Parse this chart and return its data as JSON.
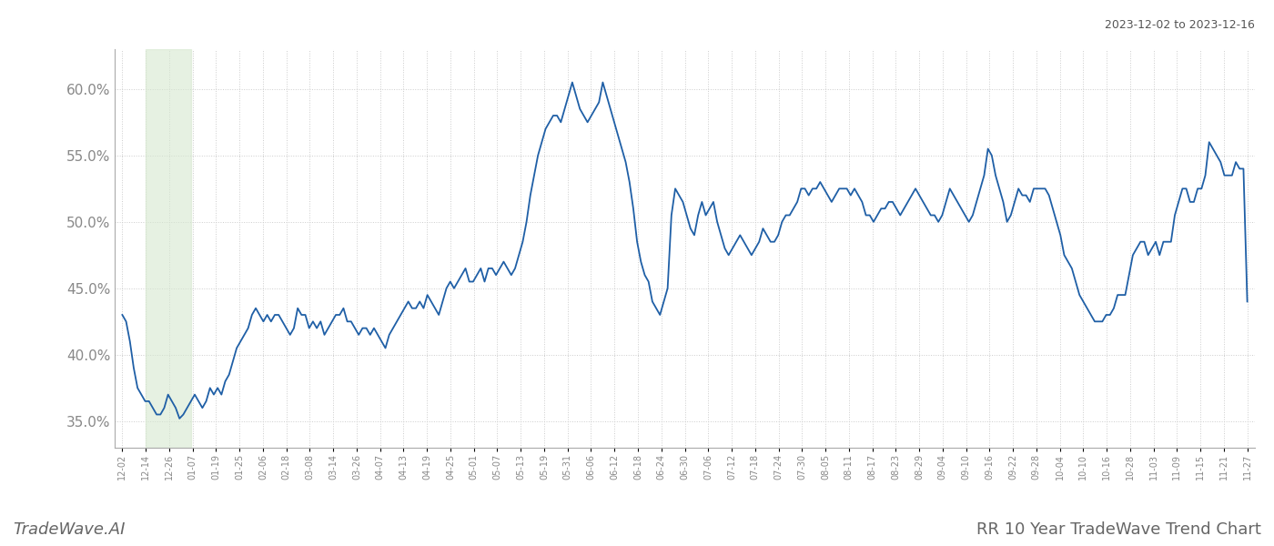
{
  "title_top_right": "2023-12-02 to 2023-12-16",
  "title_bottom_left": "TradeWave.AI",
  "title_bottom_right": "RR 10 Year TradeWave Trend Chart",
  "line_color": "#1f5fa6",
  "line_width": 1.3,
  "background_color": "#ffffff",
  "grid_color": "#cccccc",
  "highlight_color": "#d6e8d0",
  "highlight_alpha": 0.6,
  "ylim_low": 33.0,
  "ylim_high": 63.0,
  "yticks": [
    35.0,
    40.0,
    45.0,
    50.0,
    55.0,
    60.0
  ],
  "xlabel_fontsize": 7,
  "tick_label_color": "#888888",
  "xtick_labels": [
    "12-02",
    "12-14",
    "12-26",
    "01-07",
    "01-19",
    "01-25",
    "02-06",
    "02-18",
    "03-08",
    "03-14",
    "03-26",
    "04-07",
    "04-13",
    "04-19",
    "04-25",
    "05-01",
    "05-07",
    "05-13",
    "05-19",
    "05-31",
    "06-06",
    "06-12",
    "06-18",
    "06-24",
    "06-30",
    "07-06",
    "07-12",
    "07-18",
    "07-24",
    "07-30",
    "08-05",
    "08-11",
    "08-17",
    "08-23",
    "08-29",
    "09-04",
    "09-10",
    "09-16",
    "09-22",
    "09-28",
    "10-04",
    "10-10",
    "10-16",
    "10-28",
    "11-03",
    "11-09",
    "11-15",
    "11-21",
    "11-27"
  ],
  "series": [
    43.0,
    42.5,
    41.0,
    39.0,
    37.5,
    37.0,
    36.5,
    36.5,
    36.0,
    35.5,
    35.5,
    36.0,
    37.0,
    36.5,
    36.0,
    35.2,
    35.5,
    36.0,
    36.5,
    37.0,
    36.5,
    36.0,
    36.5,
    37.5,
    37.0,
    37.5,
    37.0,
    38.0,
    38.5,
    39.5,
    40.5,
    41.0,
    41.5,
    42.0,
    43.0,
    43.5,
    43.0,
    42.5,
    43.0,
    42.5,
    43.0,
    43.0,
    42.5,
    42.0,
    41.5,
    42.0,
    43.5,
    43.0,
    43.0,
    42.0,
    42.5,
    42.0,
    42.5,
    41.5,
    42.0,
    42.5,
    43.0,
    43.0,
    43.5,
    42.5,
    42.5,
    42.0,
    41.5,
    42.0,
    42.0,
    41.5,
    42.0,
    41.5,
    41.0,
    40.5,
    41.5,
    42.0,
    42.5,
    43.0,
    43.5,
    44.0,
    43.5,
    43.5,
    44.0,
    43.5,
    44.5,
    44.0,
    43.5,
    43.0,
    44.0,
    45.0,
    45.5,
    45.0,
    45.5,
    46.0,
    46.5,
    45.5,
    45.5,
    46.0,
    46.5,
    45.5,
    46.5,
    46.5,
    46.0,
    46.5,
    47.0,
    46.5,
    46.0,
    46.5,
    47.5,
    48.5,
    50.0,
    52.0,
    53.5,
    55.0,
    56.0,
    57.0,
    57.5,
    58.0,
    58.0,
    57.5,
    58.5,
    59.5,
    60.5,
    59.5,
    58.5,
    58.0,
    57.5,
    58.0,
    58.5,
    59.0,
    60.5,
    59.5,
    58.5,
    57.5,
    56.5,
    55.5,
    54.5,
    53.0,
    51.0,
    48.5,
    47.0,
    46.0,
    45.5,
    44.0,
    43.5,
    43.0,
    44.0,
    45.0,
    50.5,
    52.5,
    52.0,
    51.5,
    50.5,
    49.5,
    49.0,
    50.5,
    51.5,
    50.5,
    51.0,
    51.5,
    50.0,
    49.0,
    48.0,
    47.5,
    48.0,
    48.5,
    49.0,
    48.5,
    48.0,
    47.5,
    48.0,
    48.5,
    49.5,
    49.0,
    48.5,
    48.5,
    49.0,
    50.0,
    50.5,
    50.5,
    51.0,
    51.5,
    52.5,
    52.5,
    52.0,
    52.5,
    52.5,
    53.0,
    52.5,
    52.0,
    51.5,
    52.0,
    52.5,
    52.5,
    52.5,
    52.0,
    52.5,
    52.0,
    51.5,
    50.5,
    50.5,
    50.0,
    50.5,
    51.0,
    51.0,
    51.5,
    51.5,
    51.0,
    50.5,
    51.0,
    51.5,
    52.0,
    52.5,
    52.0,
    51.5,
    51.0,
    50.5,
    50.5,
    50.0,
    50.5,
    51.5,
    52.5,
    52.0,
    51.5,
    51.0,
    50.5,
    50.0,
    50.5,
    51.5,
    52.5,
    53.5,
    55.5,
    55.0,
    53.5,
    52.5,
    51.5,
    50.0,
    50.5,
    51.5,
    52.5,
    52.0,
    52.0,
    51.5,
    52.5,
    52.5,
    52.5,
    52.5,
    52.0,
    51.0,
    50.0,
    49.0,
    47.5,
    47.0,
    46.5,
    45.5,
    44.5,
    44.0,
    43.5,
    43.0,
    42.5,
    42.5,
    42.5,
    43.0,
    43.0,
    43.5,
    44.5,
    44.5,
    44.5,
    46.0,
    47.5,
    48.0,
    48.5,
    48.5,
    47.5,
    48.0,
    48.5,
    47.5,
    48.5,
    48.5,
    48.5,
    50.5,
    51.5,
    52.5,
    52.5,
    51.5,
    51.5,
    52.5,
    52.5,
    53.5,
    56.0,
    55.5,
    55.0,
    54.5,
    53.5,
    53.5,
    53.5,
    54.5,
    54.0,
    54.0,
    44.0
  ]
}
